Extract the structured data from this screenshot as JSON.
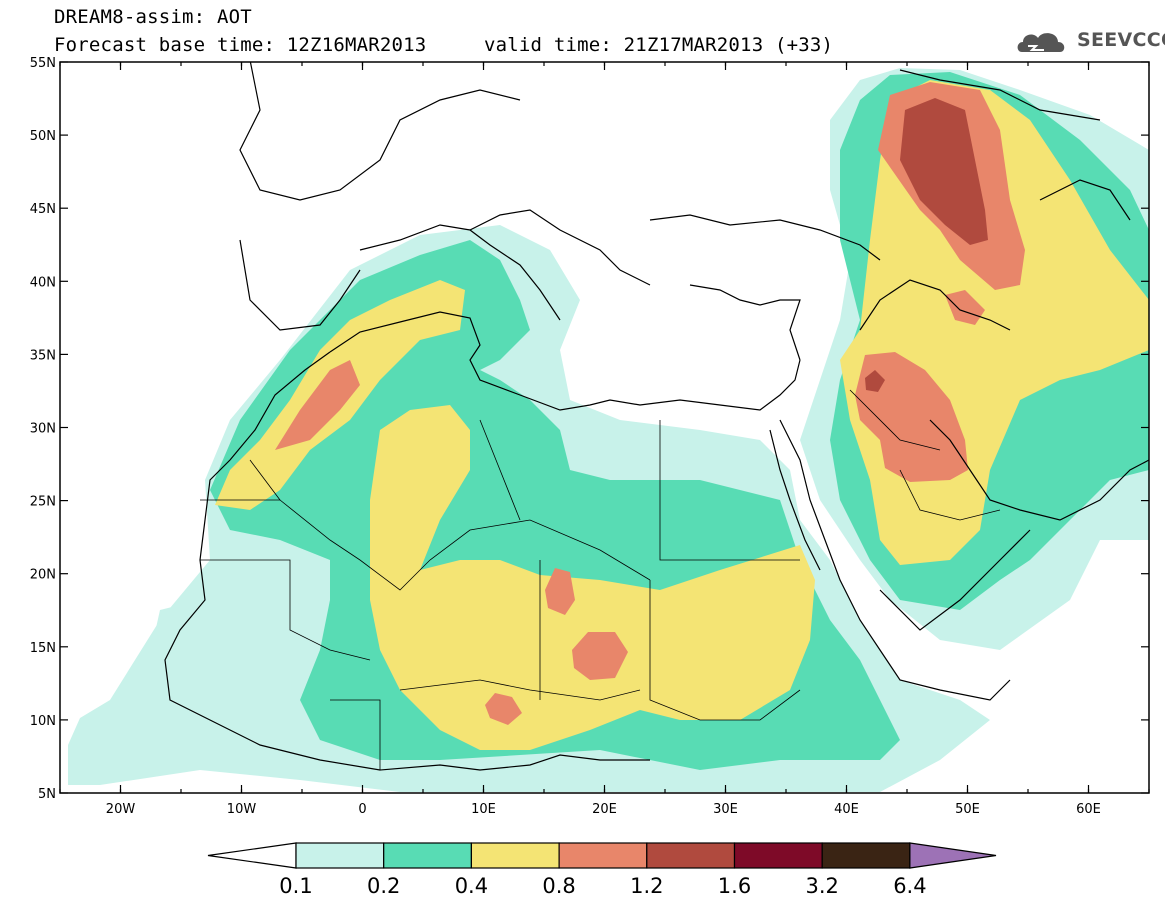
{
  "header": {
    "title": "DREAM8-assim: AOT",
    "base_time": "Forecast base time: 12Z16MAR2013",
    "valid_time": "valid time: 21Z17MAR2013 (+33)"
  },
  "logo": {
    "text": "SEEVCCC",
    "icon": "cloud-icon"
  },
  "map": {
    "lat_labels": [
      "55N",
      "50N",
      "45N",
      "40N",
      "35N",
      "30N",
      "25N",
      "20N",
      "15N",
      "10N",
      "5N"
    ],
    "lon_labels": [
      "20W",
      "10W",
      "0",
      "10E",
      "20E",
      "30E",
      "40E",
      "50E",
      "60E"
    ]
  },
  "colorbar": {
    "labels": [
      "0.1",
      "0.2",
      "0.4",
      "0.8",
      "1.2",
      "1.6",
      "3.2",
      "6.4"
    ],
    "colors": [
      "#ffffff",
      "#c8f2ea",
      "#58dcb4",
      "#f4e474",
      "#e8866a",
      "#b04a3e",
      "#7e0a28",
      "#3a2414",
      "#9d72b6"
    ]
  },
  "palette": {
    "aot_0_1": "#c8f2ea",
    "aot_0_2": "#58dcb4",
    "aot_0_4": "#f4e474",
    "aot_0_8": "#e8866a",
    "aot_1_2": "#b04a3e",
    "aot_1_6": "#7e0a28"
  }
}
